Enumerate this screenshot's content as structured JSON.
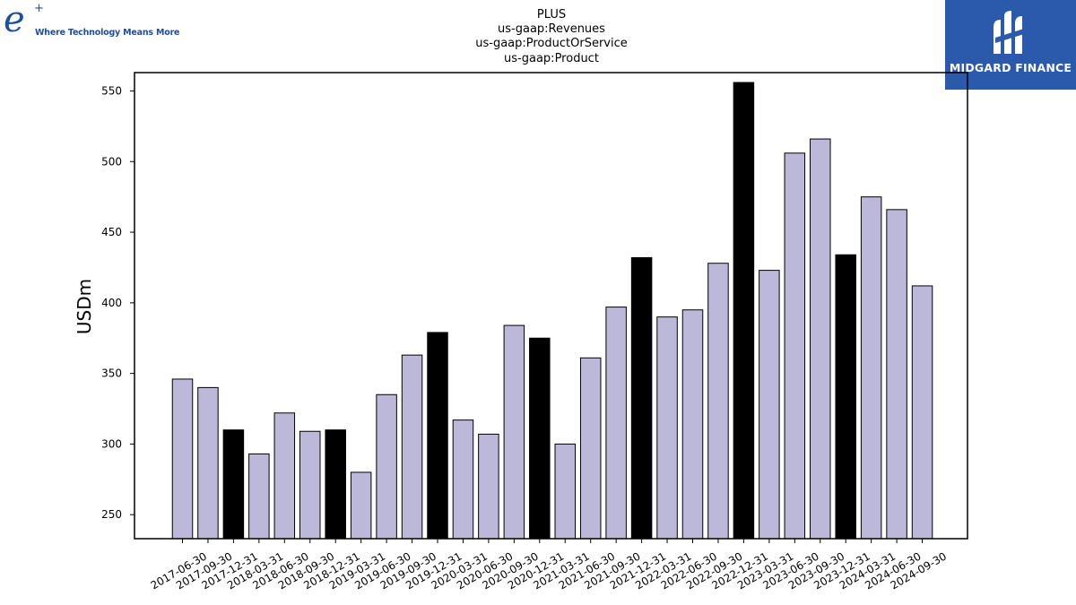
{
  "logos": {
    "left_mark": "e",
    "left_plus": "+",
    "left_tagline": "Where Technology Means More",
    "right_name": "MIDGARD FINANCE",
    "right_icon": "midgard-logo-icon"
  },
  "colors": {
    "bar_regular": "#bcb8d9",
    "bar_highlight": "#000000",
    "bar_edge": "#000000",
    "brand_blue": "#2b5aad"
  },
  "chart_data": {
    "type": "bar",
    "title": [
      "PLUS",
      "us-gaap:Revenues",
      "us-gaap:ProductOrService",
      "us-gaap:Product"
    ],
    "xlabel": "",
    "ylabel": "USDm",
    "ylim": [
      233,
      563
    ],
    "yticks": [
      250,
      300,
      350,
      400,
      450,
      500,
      550
    ],
    "grid": false,
    "legend": "none",
    "categories": [
      "2017-06-30",
      "2017-09-30",
      "2017-12-31",
      "2018-03-31",
      "2018-06-30",
      "2018-09-30",
      "2018-12-31",
      "2019-03-31",
      "2019-06-30",
      "2019-09-30",
      "2019-12-31",
      "2020-03-31",
      "2020-06-30",
      "2020-09-30",
      "2020-12-31",
      "2021-03-31",
      "2021-06-30",
      "2021-09-30",
      "2021-12-31",
      "2022-03-31",
      "2022-06-30",
      "2022-09-30",
      "2022-12-31",
      "2023-03-31",
      "2023-06-30",
      "2023-09-30",
      "2023-12-31",
      "2024-03-31",
      "2024-06-30",
      "2024-09-30"
    ],
    "values": [
      346,
      340,
      310,
      293,
      322,
      309,
      310,
      280,
      335,
      363,
      379,
      317,
      307,
      384,
      375,
      300,
      361,
      397,
      432,
      390,
      395,
      428,
      556,
      423,
      506,
      516,
      434,
      475,
      466,
      412
    ],
    "highlight": [
      false,
      false,
      true,
      false,
      false,
      false,
      true,
      false,
      false,
      false,
      true,
      false,
      false,
      false,
      true,
      false,
      false,
      false,
      true,
      false,
      false,
      false,
      true,
      false,
      false,
      false,
      true,
      false,
      false,
      false
    ]
  }
}
